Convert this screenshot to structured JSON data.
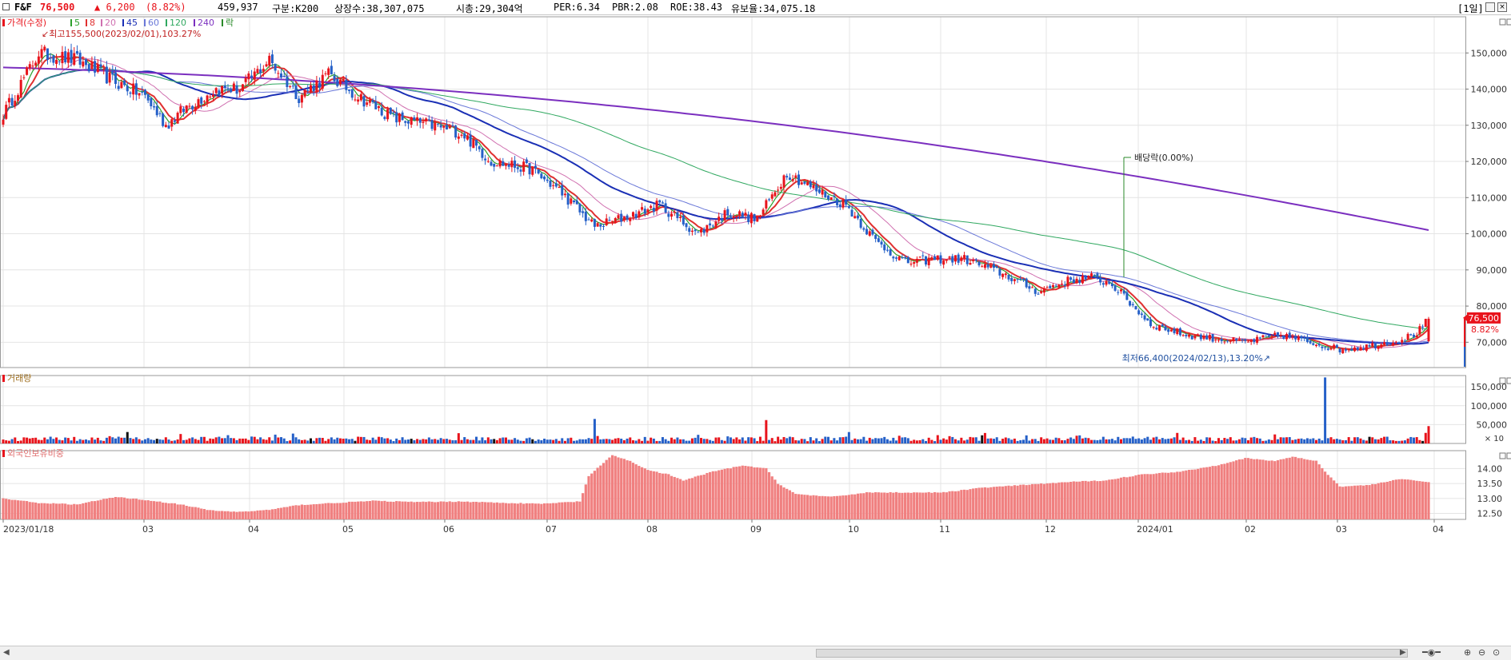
{
  "header": {
    "name": "F&F",
    "price": "76,500",
    "change": "▲ 6,200",
    "change_pct": "(8.82%)",
    "volume": "459,937",
    "market": "구분:K200",
    "shares": "상장수:38,307,075",
    "mktcap": "시총:29,304억",
    "per": "PER:6.34",
    "pbr": "PBR:2.08",
    "roe": "ROE:38.43",
    "float": "유보율:34,075.18",
    "period": "[1일]"
  },
  "legend": {
    "price_title": "가격(수정)",
    "ma": [
      {
        "label": "5",
        "color": "#2ca02c"
      },
      {
        "label": "8",
        "color": "#e03030"
      },
      {
        "label": "20",
        "color": "#d070b0"
      },
      {
        "label": "45",
        "color": "#1a2fb5"
      },
      {
        "label": "60",
        "color": "#6a78d8"
      },
      {
        "label": "120",
        "color": "#30a860"
      },
      {
        "label": "240",
        "color": "#7b2fbf"
      }
    ],
    "ex_dividend_legend": "락",
    "volume_title": "거래량",
    "foreign_title": "외국인보유비중"
  },
  "annotations": {
    "high": "최고155,500(2023/02/01),103.27%",
    "low": "최저66,400(2024/02/13),13.20%",
    "dividend": "배당락(0.00%)",
    "last_price": "76,500",
    "last_pct": "8.82%",
    "vol_unit": "× 10"
  },
  "colors": {
    "up": "#e8141c",
    "down": "#2560c8",
    "volume_neutral": "#111111",
    "foreign": "#f08080",
    "grid": "#e4e4e4"
  },
  "chart_data": [
    {
      "type": "candlestick",
      "name": "price",
      "ylim": [
        63000,
        160000
      ],
      "y_ticks": [
        "150,000",
        "140,000",
        "130,000",
        "120,000",
        "110,000",
        "100,000",
        "90,000",
        "80,000",
        "70,000"
      ],
      "x_ticks": [
        "2023/01/18",
        "03",
        "04",
        "05",
        "06",
        "07",
        "08",
        "09",
        "10",
        "11",
        "12",
        "2024/01",
        "02",
        "03",
        "04"
      ],
      "anchors_close": [
        [
          0,
          133000
        ],
        [
          12,
          150000
        ],
        [
          25,
          148000
        ],
        [
          38,
          142000
        ],
        [
          48,
          138000
        ],
        [
          55,
          130000
        ],
        [
          62,
          135000
        ],
        [
          72,
          140000
        ],
        [
          80,
          140000
        ],
        [
          90,
          148000
        ],
        [
          100,
          138000
        ],
        [
          110,
          144000
        ],
        [
          120,
          138000
        ],
        [
          132,
          132000
        ],
        [
          145,
          130000
        ],
        [
          155,
          128000
        ],
        [
          165,
          120000
        ],
        [
          178,
          118000
        ],
        [
          188,
          112000
        ],
        [
          200,
          102000
        ],
        [
          212,
          105000
        ],
        [
          222,
          108000
        ],
        [
          235,
          100000
        ],
        [
          245,
          106000
        ],
        [
          255,
          104000
        ],
        [
          265,
          117000
        ],
        [
          275,
          112000
        ],
        [
          285,
          108000
        ],
        [
          295,
          98000
        ],
        [
          305,
          92000
        ],
        [
          315,
          93000
        ],
        [
          325,
          93000
        ],
        [
          338,
          89000
        ],
        [
          350,
          84000
        ],
        [
          360,
          87000
        ],
        [
          368,
          88000
        ],
        [
          375,
          86000
        ],
        [
          388,
          75000
        ],
        [
          400,
          72000
        ],
        [
          410,
          71000
        ],
        [
          420,
          70000
        ],
        [
          432,
          72000
        ],
        [
          442,
          70000
        ],
        [
          452,
          68000
        ],
        [
          462,
          69000
        ],
        [
          472,
          70500
        ],
        [
          478,
          72500
        ],
        [
          482,
          76500
        ]
      ],
      "last_close": 76500,
      "ma240_endpoints": [
        [
          0,
          146000
        ],
        [
          482,
          101000
        ]
      ]
    },
    {
      "type": "bar",
      "name": "volume",
      "unit": "× 10",
      "ylim": [
        0,
        180000
      ],
      "y_ticks": [
        "150,000",
        "100,000",
        "50,000"
      ],
      "spikes": [
        [
          200,
          65000
        ],
        [
          258,
          62000
        ],
        [
          447,
          175000
        ],
        [
          482,
          46000
        ]
      ]
    },
    {
      "type": "bar",
      "name": "foreign_holding_ratio",
      "ylim": [
        12.3,
        14.6
      ],
      "y_ticks": [
        "14.00",
        "13.50",
        "13.00",
        "12.50"
      ],
      "anchors": [
        [
          0,
          13.0
        ],
        [
          12,
          12.85
        ],
        [
          25,
          12.8
        ],
        [
          38,
          13.05
        ],
        [
          48,
          12.95
        ],
        [
          60,
          12.8
        ],
        [
          70,
          12.6
        ],
        [
          80,
          12.55
        ],
        [
          90,
          12.62
        ],
        [
          100,
          12.78
        ],
        [
          112,
          12.85
        ],
        [
          125,
          12.92
        ],
        [
          140,
          12.88
        ],
        [
          155,
          12.9
        ],
        [
          170,
          12.85
        ],
        [
          182,
          12.82
        ],
        [
          195,
          12.9
        ],
        [
          198,
          13.75
        ],
        [
          206,
          14.45
        ],
        [
          212,
          14.25
        ],
        [
          218,
          13.95
        ],
        [
          225,
          13.8
        ],
        [
          230,
          13.6
        ],
        [
          240,
          13.9
        ],
        [
          250,
          14.1
        ],
        [
          258,
          14.0
        ],
        [
          262,
          13.5
        ],
        [
          268,
          13.15
        ],
        [
          280,
          13.05
        ],
        [
          292,
          13.2
        ],
        [
          305,
          13.2
        ],
        [
          318,
          13.2
        ],
        [
          330,
          13.35
        ],
        [
          345,
          13.45
        ],
        [
          360,
          13.55
        ],
        [
          372,
          13.6
        ],
        [
          385,
          13.8
        ],
        [
          398,
          13.9
        ],
        [
          410,
          14.1
        ],
        [
          420,
          14.35
        ],
        [
          430,
          14.25
        ],
        [
          436,
          14.4
        ],
        [
          444,
          14.25
        ],
        [
          448,
          13.8
        ],
        [
          452,
          13.4
        ],
        [
          462,
          13.45
        ],
        [
          472,
          13.65
        ],
        [
          482,
          13.55
        ]
      ]
    }
  ]
}
